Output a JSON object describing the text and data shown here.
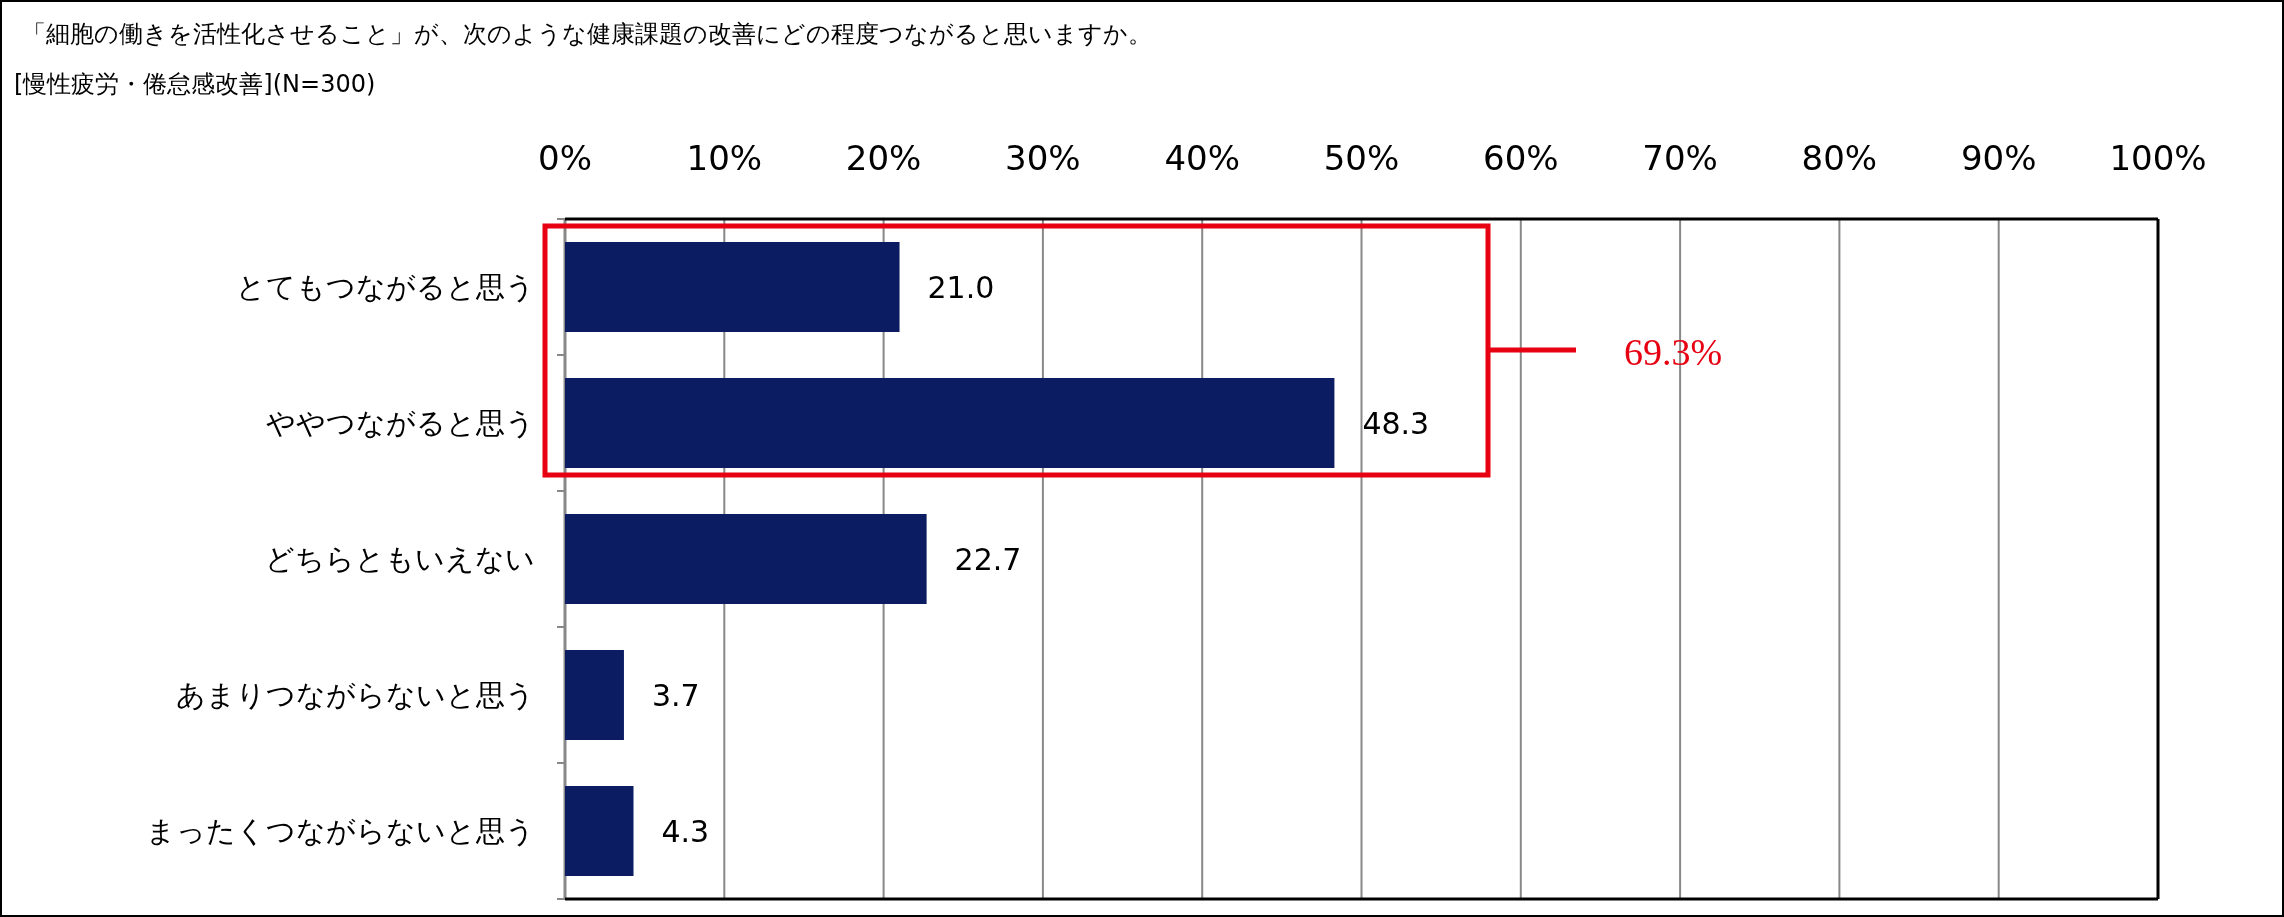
{
  "chart_data": {
    "type": "bar",
    "orientation": "horizontal",
    "title": "「細胞の働きを活性化させること」が、次のような健康課題の改善にどの程度つながると思いますか。",
    "subtitle": "[慢性疲労・倦怠感改善](N=300)",
    "categories": [
      "とてもつながると思う",
      "ややつながると思う",
      "どちらともいえない",
      "あまりつながらないと思う",
      "まったくつながらないと思う"
    ],
    "values": [
      21.0,
      48.3,
      22.7,
      3.7,
      4.3
    ],
    "value_labels": [
      "21.0",
      "48.3",
      "22.7",
      "3.7",
      "4.3"
    ],
    "color": "#0c1c62",
    "xlim": [
      0,
      100
    ],
    "xticks": [
      {
        "value": 0,
        "label": "0%"
      },
      {
        "value": 10,
        "label": "10%"
      },
      {
        "value": 20,
        "label": "20%"
      },
      {
        "value": 30,
        "label": "30%"
      },
      {
        "value": 40,
        "label": "40%"
      },
      {
        "value": 50,
        "label": "50%"
      },
      {
        "value": 60,
        "label": "60%"
      },
      {
        "value": 70,
        "label": "70%"
      },
      {
        "value": 80,
        "label": "80%"
      },
      {
        "value": 90,
        "label": "90%"
      },
      {
        "value": 100,
        "label": "100%"
      }
    ],
    "grid": "x",
    "annotations": [
      "69.3%"
    ]
  }
}
